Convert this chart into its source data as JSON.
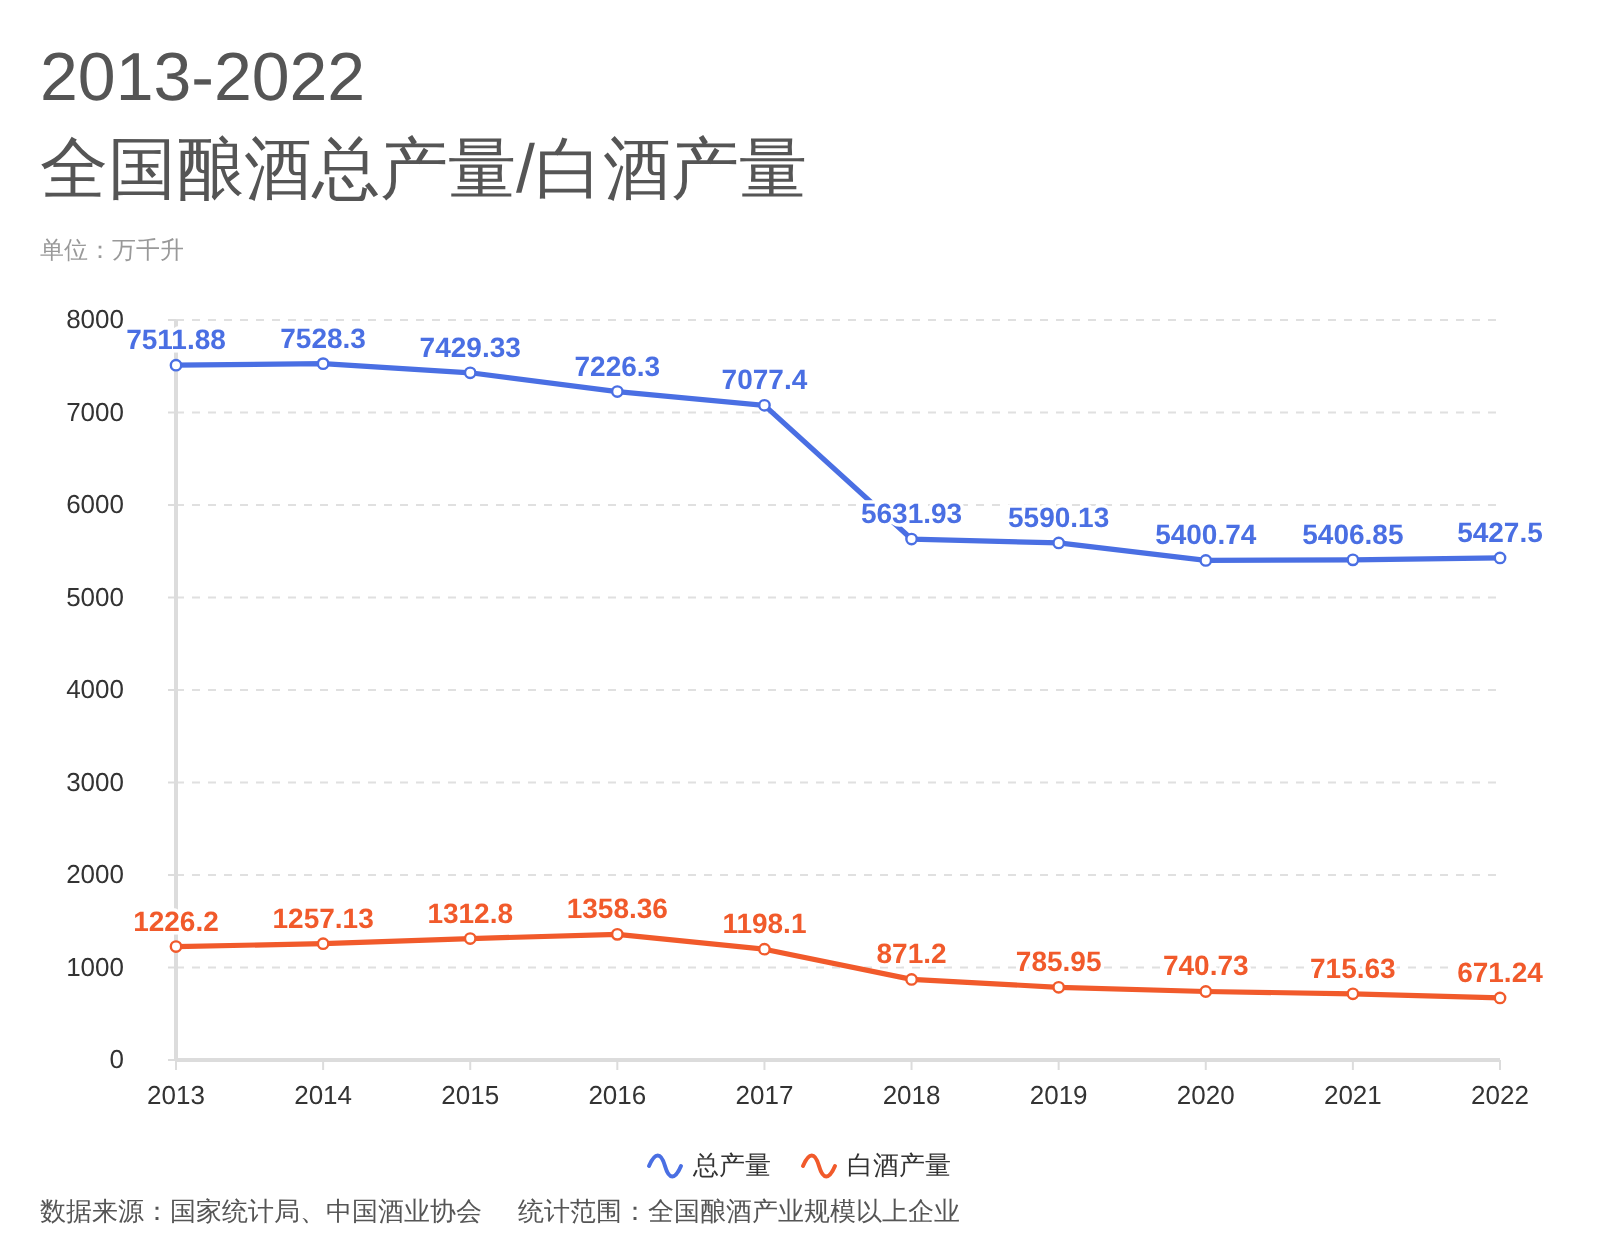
{
  "chart_data": {
    "type": "line",
    "title": "2013-2022\n全国酿酒总产量/白酒产量",
    "ylabel": "单位：万千升",
    "categories": [
      "2013",
      "2014",
      "2015",
      "2016",
      "2017",
      "2018",
      "2019",
      "2020",
      "2021",
      "2022"
    ],
    "series": [
      {
        "name": "总产量",
        "color": "#4a6fe3",
        "values": [
          7511.88,
          7528.3,
          7429.33,
          7226.3,
          7077.4,
          5631.93,
          5590.13,
          5400.74,
          5406.85,
          5427.5
        ]
      },
      {
        "name": "白酒产量",
        "color": "#f15a2b",
        "values": [
          1226.2,
          1257.13,
          1312.8,
          1358.36,
          1198.1,
          871.2,
          785.95,
          740.73,
          715.63,
          671.24
        ]
      }
    ],
    "ylim": [
      0,
      8000
    ],
    "yticks": [
      0,
      1000,
      2000,
      3000,
      4000,
      5000,
      6000,
      7000,
      8000
    ],
    "grid": "y",
    "legend": "bottom",
    "marker": "circle",
    "line_style": "solid",
    "data_labels": true,
    "annotations": [
      "数据来源：国家统计局、中国酒业协会",
      "统计范围：全国酿酒产业规模以上企业"
    ]
  }
}
